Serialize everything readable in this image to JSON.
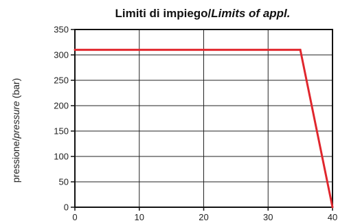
{
  "chart_data": {
    "type": "line",
    "title": {
      "main": "Limiti di impiego/",
      "italic": "Limits of appl."
    },
    "xlabel": "",
    "ylabel": {
      "main": "pressione/",
      "italic": "pressure",
      "suffix": " (bar)"
    },
    "xlim": [
      0,
      40
    ],
    "ylim": [
      0,
      350
    ],
    "xticks": [
      0,
      10,
      20,
      30,
      40
    ],
    "yticks": [
      0,
      50,
      100,
      150,
      200,
      250,
      300,
      350
    ],
    "grid": true,
    "legend": "none",
    "series": [
      {
        "color": "#e0262d",
        "points": [
          [
            0,
            310
          ],
          [
            35,
            310
          ],
          [
            40,
            0
          ]
        ]
      }
    ]
  }
}
